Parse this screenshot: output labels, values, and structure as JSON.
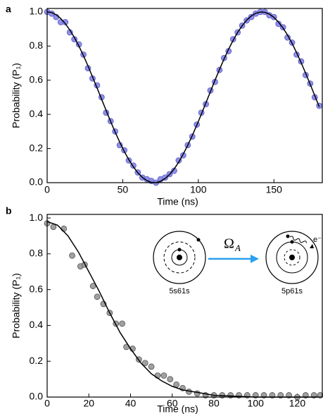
{
  "chart_data": [
    {
      "type": "scatter",
      "panel_label": "a",
      "xlabel": "Time (ns)",
      "ylabel": "Probability (P₁)",
      "xlim": [
        0,
        182
      ],
      "ylim": [
        0,
        1.02
      ],
      "xticks": [
        0,
        50,
        100,
        150
      ],
      "yticks": [
        {
          "value": 0,
          "label": "0.0"
        },
        {
          "value": 0.2,
          "label": "0.2"
        },
        {
          "value": 0.4,
          "label": "0.4"
        },
        {
          "value": 0.6,
          "label": "0.6"
        },
        {
          "value": 0.8,
          "label": "0.8"
        },
        {
          "value": 1,
          "label": "1.0"
        }
      ],
      "series": [
        {
          "style": "markers",
          "color": "#8f8fe8",
          "edgecolor": "#5a5ac8",
          "x": [
            0,
            3,
            6,
            9,
            12,
            15,
            18,
            21,
            24,
            27,
            30,
            33,
            36,
            39,
            42,
            45,
            48,
            51,
            54,
            57,
            60,
            63,
            66,
            69,
            72,
            75,
            78,
            81,
            84,
            87,
            90,
            93,
            96,
            99,
            102,
            105,
            108,
            111,
            114,
            117,
            120,
            123,
            126,
            129,
            132,
            135,
            138,
            141,
            144,
            147,
            150,
            153,
            156,
            159,
            162,
            165,
            168,
            171,
            174,
            177,
            180
          ],
          "values": [
            1.0,
            0.99,
            0.97,
            0.94,
            0.94,
            0.88,
            0.84,
            0.81,
            0.75,
            0.67,
            0.61,
            0.57,
            0.5,
            0.41,
            0.36,
            0.3,
            0.22,
            0.19,
            0.13,
            0.1,
            0.06,
            0.03,
            0.02,
            0.01,
            0.0,
            0.02,
            0.03,
            0.05,
            0.07,
            0.13,
            0.16,
            0.22,
            0.27,
            0.34,
            0.41,
            0.46,
            0.54,
            0.59,
            0.66,
            0.73,
            0.77,
            0.84,
            0.88,
            0.92,
            0.95,
            0.97,
            0.99,
            1.0,
            1.0,
            0.98,
            0.97,
            0.93,
            0.91,
            0.85,
            0.82,
            0.75,
            0.71,
            0.63,
            0.58,
            0.5,
            0.45
          ]
        },
        {
          "style": "line",
          "color": "#000000",
          "x": [
            0,
            3,
            6,
            9,
            12,
            15,
            18,
            21,
            24,
            27,
            30,
            33,
            36,
            39,
            42,
            45,
            48,
            51,
            54,
            57,
            60,
            63,
            66,
            69,
            72,
            75,
            78,
            81,
            84,
            87,
            90,
            93,
            96,
            99,
            102,
            105,
            108,
            111,
            114,
            117,
            120,
            123,
            126,
            129,
            132,
            135,
            138,
            141,
            144,
            147,
            150,
            153,
            156,
            159,
            162,
            165,
            168,
            171,
            174,
            177,
            180
          ],
          "values": [
            1.0,
            0.996,
            0.983,
            0.961,
            0.931,
            0.894,
            0.85,
            0.8,
            0.744,
            0.684,
            0.62,
            0.555,
            0.489,
            0.423,
            0.358,
            0.296,
            0.237,
            0.183,
            0.135,
            0.093,
            0.058,
            0.031,
            0.012,
            0.002,
            0.0,
            0.008,
            0.024,
            0.048,
            0.08,
            0.12,
            0.167,
            0.219,
            0.276,
            0.337,
            0.401,
            0.467,
            0.533,
            0.599,
            0.663,
            0.724,
            0.781,
            0.833,
            0.88,
            0.919,
            0.952,
            0.976,
            0.992,
            0.999,
            0.998,
            0.987,
            0.968,
            0.94,
            0.906,
            0.864,
            0.816,
            0.761,
            0.703,
            0.64,
            0.576,
            0.51,
            0.444
          ]
        }
      ]
    },
    {
      "type": "scatter",
      "panel_label": "b",
      "xlabel": "Time (ns)",
      "ylabel": "Probability (P₁)",
      "xlim": [
        0,
        132
      ],
      "ylim": [
        0,
        1.02
      ],
      "xticks": [
        0,
        20,
        40,
        60,
        80,
        100,
        120
      ],
      "yticks": [
        {
          "value": 0,
          "label": "0.0"
        },
        {
          "value": 0.2,
          "label": "0.2"
        },
        {
          "value": 0.4,
          "label": "0.4"
        },
        {
          "value": 0.6,
          "label": "0.6"
        },
        {
          "value": 0.8,
          "label": "0.8"
        },
        {
          "value": 1,
          "label": "1.0"
        }
      ],
      "series": [
        {
          "style": "markers",
          "color": "#a0a0a0",
          "edgecolor": "#555555",
          "x": [
            0,
            3,
            8,
            12,
            16,
            18,
            22,
            24,
            27,
            30,
            33,
            36,
            38,
            41,
            44,
            47,
            50,
            53,
            56,
            59,
            62,
            65,
            68,
            72,
            76,
            80,
            84,
            88,
            92,
            96,
            100,
            104,
            108,
            112,
            116,
            120,
            124,
            128,
            131
          ],
          "values": [
            0.97,
            0.95,
            0.94,
            0.79,
            0.73,
            0.74,
            0.62,
            0.56,
            0.52,
            0.47,
            0.41,
            0.41,
            0.28,
            0.27,
            0.21,
            0.19,
            0.17,
            0.12,
            0.12,
            0.1,
            0.07,
            0.05,
            0.03,
            0.02,
            0.01,
            0.01,
            0.01,
            0.01,
            0.01,
            0.01,
            0.01,
            0.01,
            0.01,
            0.01,
            0.01,
            0.0,
            0.01,
            0.01,
            0.01
          ]
        },
        {
          "style": "line",
          "color": "#000000",
          "x": [
            0,
            5,
            10,
            15,
            20,
            25,
            30,
            35,
            40,
            45,
            50,
            55,
            60,
            65,
            70,
            75,
            80,
            90,
            100,
            110,
            120,
            130
          ],
          "values": [
            0.98,
            0.96,
            0.9,
            0.81,
            0.7,
            0.59,
            0.47,
            0.36,
            0.27,
            0.19,
            0.13,
            0.09,
            0.06,
            0.04,
            0.03,
            0.02,
            0.01,
            0.005,
            0,
            0,
            0,
            0
          ]
        }
      ],
      "annotations": {
        "left_state": "5s61s",
        "right_state": "5p61s",
        "arrow": "Ω",
        "arrow_sub": "A",
        "electron": "e⁻"
      }
    }
  ]
}
